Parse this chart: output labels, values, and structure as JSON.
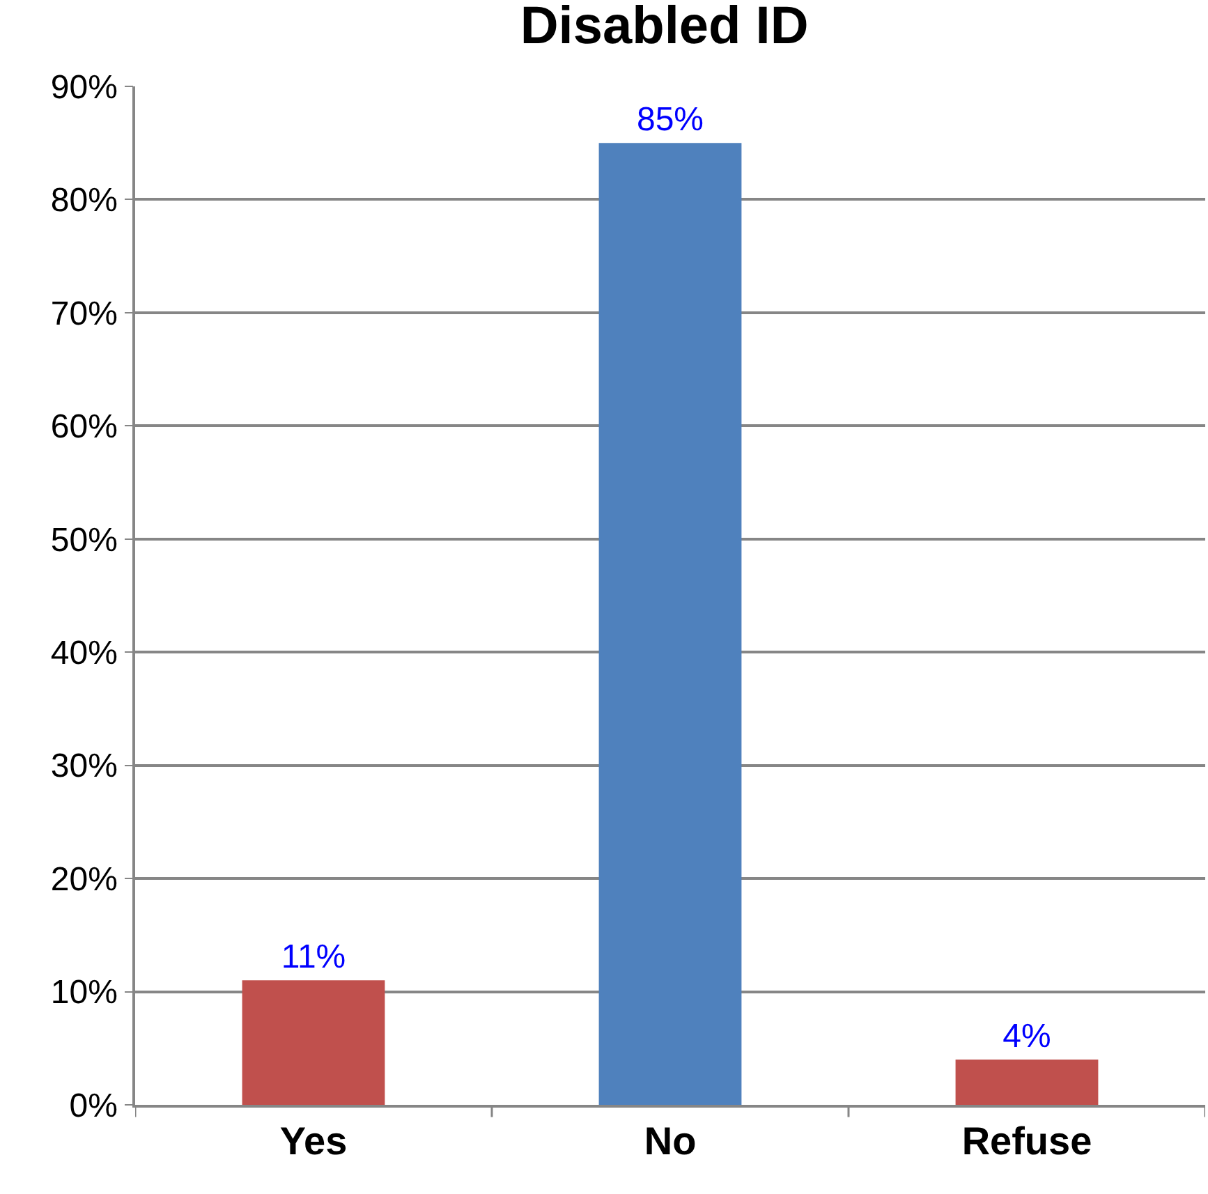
{
  "chart_data": {
    "type": "bar",
    "title": "Disabled ID",
    "categories": [
      "Yes",
      "No",
      "Refuse"
    ],
    "values": [
      11,
      85,
      4
    ],
    "colors": [
      "#c0504d",
      "#4f81bd",
      "#c0504d"
    ],
    "value_labels": [
      "11%",
      "85%",
      "4%"
    ],
    "ylim": [
      0,
      90
    ],
    "yticks": [
      {
        "value": 0,
        "label": "0%"
      },
      {
        "value": 10,
        "label": "10%"
      },
      {
        "value": 20,
        "label": "20%"
      },
      {
        "value": 30,
        "label": "30%"
      },
      {
        "value": 40,
        "label": "40%"
      },
      {
        "value": 50,
        "label": "50%"
      },
      {
        "value": 60,
        "label": "60%"
      },
      {
        "value": 70,
        "label": "70%"
      },
      {
        "value": 80,
        "label": "80%"
      },
      {
        "value": 90,
        "label": "90%"
      }
    ],
    "grid": "y"
  }
}
